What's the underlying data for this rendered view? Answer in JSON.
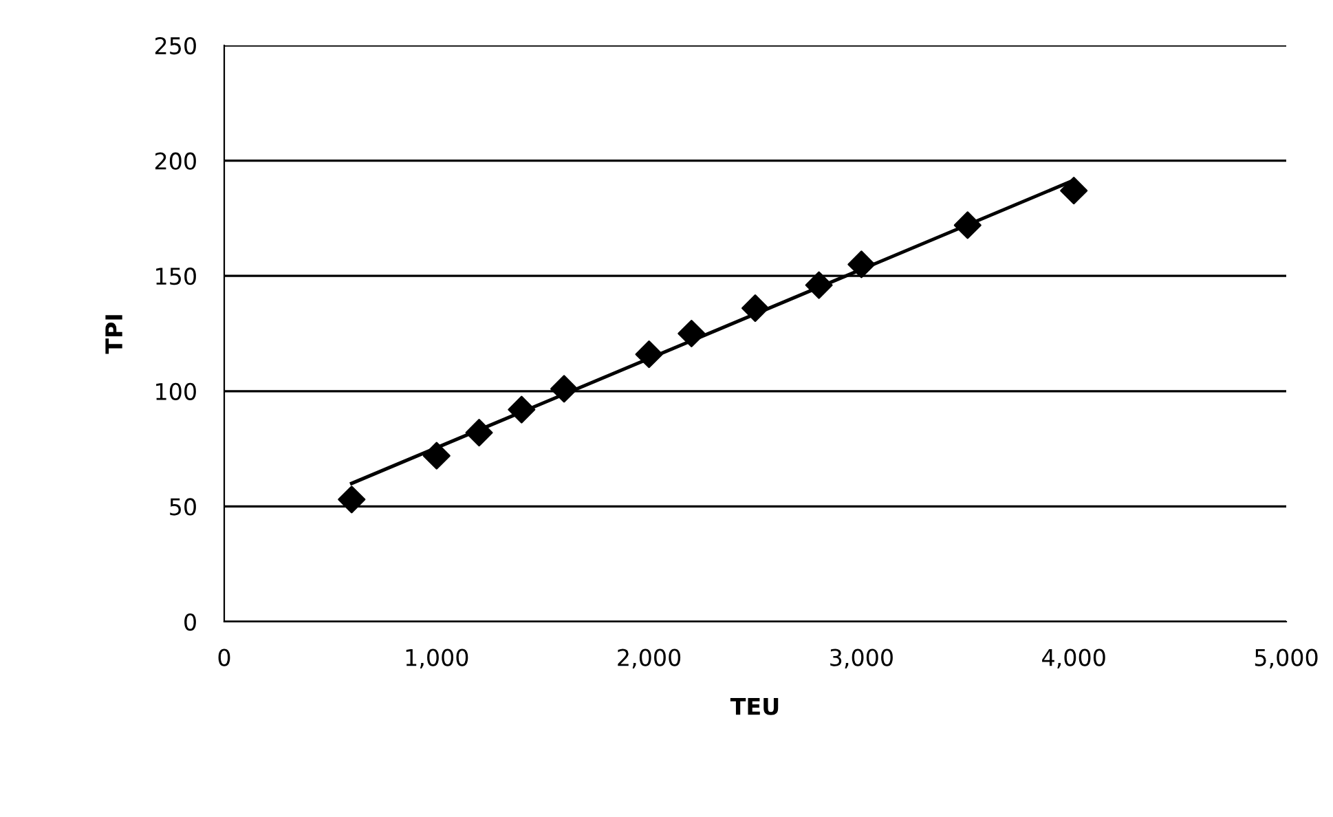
{
  "chart_data": {
    "type": "scatter",
    "xlabel": "TEU",
    "ylabel": "TPI",
    "series": [
      {
        "color": "#000000",
        "marker": "diamond",
        "x": [
          600,
          1000,
          1200,
          1400,
          1600,
          2000,
          2200,
          2500,
          2800,
          3000,
          3500,
          4000
        ],
        "values": [
          53,
          72,
          82,
          92,
          101,
          116,
          125,
          136,
          146,
          155,
          172,
          187
        ]
      },
      {
        "type": "line",
        "color": "#000000",
        "x": [
          600,
          4000
        ],
        "values": [
          60,
          191.5
        ]
      }
    ],
    "xlim": [
      0,
      5000
    ],
    "xticks": [
      {
        "value": 0,
        "label": "0"
      },
      {
        "value": 1000,
        "label": "1,000"
      },
      {
        "value": 2000,
        "label": "2,000"
      },
      {
        "value": 3000,
        "label": "3,000"
      },
      {
        "value": 4000,
        "label": "4,000"
      },
      {
        "value": 5000,
        "label": "5,000"
      }
    ],
    "ylim": [
      0,
      250
    ],
    "yticks": [
      0,
      50,
      100,
      150,
      200,
      250
    ],
    "grid": "y",
    "legend": false
  }
}
